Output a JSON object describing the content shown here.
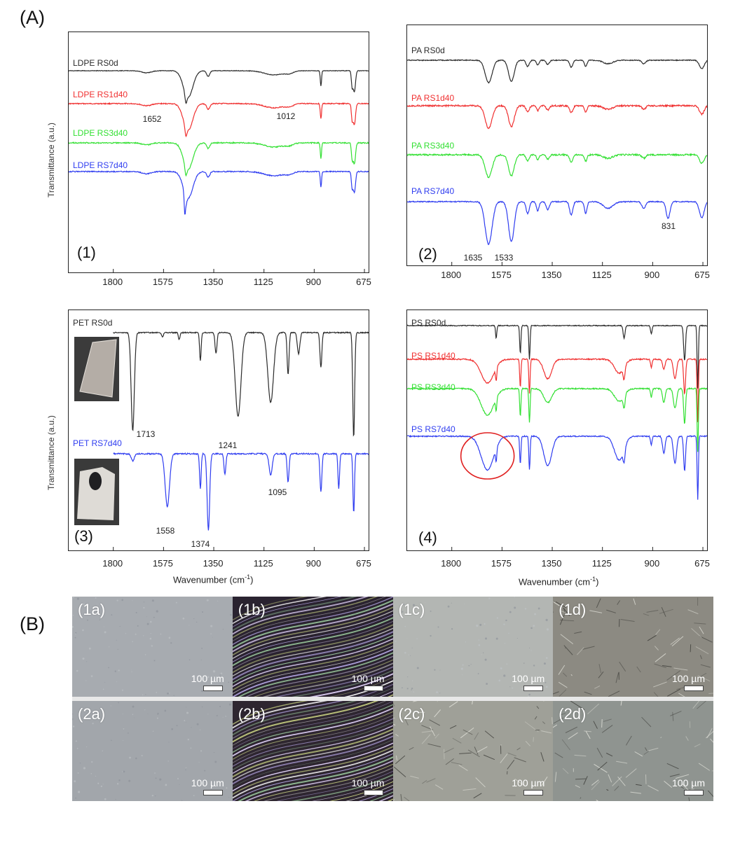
{
  "figure": {
    "section_a_label": "(A)",
    "section_b_label": "(B)"
  },
  "chart_data": [
    {
      "type": "line",
      "panel_tag": "(1)",
      "ylabel": "Transmittance (a.u.)",
      "xlabel": "",
      "xticks": [
        "1800",
        "1575",
        "1350",
        "1125",
        "900",
        "675"
      ],
      "xlim": [
        2000,
        650
      ],
      "series": [
        {
          "name": "LDPE RS0d",
          "color": "#2b2b2b"
        },
        {
          "name": "LDPE RS1d40",
          "color": "#f03030"
        },
        {
          "name": "LDPE RS3d40",
          "color": "#33e033"
        },
        {
          "name": "LDPE RS7d40",
          "color": "#2f3df0"
        }
      ],
      "peak_labels": [
        {
          "text": "1652",
          "x": 1652
        },
        {
          "text": "1012",
          "x": 1012
        }
      ]
    },
    {
      "type": "line",
      "panel_tag": "(2)",
      "ylabel": "",
      "xlabel": "",
      "xticks": [
        "1800",
        "1575",
        "1350",
        "1125",
        "900",
        "675"
      ],
      "xlim": [
        2000,
        650
      ],
      "series": [
        {
          "name": "PA RS0d",
          "color": "#2b2b2b"
        },
        {
          "name": "PA RS1d40",
          "color": "#f03030"
        },
        {
          "name": "PA RS3d40",
          "color": "#33e033"
        },
        {
          "name": "PA RS7d40",
          "color": "#2f3df0"
        }
      ],
      "peak_labels": [
        {
          "text": "1635",
          "x": 1635
        },
        {
          "text": "1533",
          "x": 1533
        },
        {
          "text": "831",
          "x": 831
        }
      ]
    },
    {
      "type": "line",
      "panel_tag": "(3)",
      "ylabel": "Transmittance (a.u.)",
      "xlabel": "Wavenumber (cm",
      "xlabel_sup": "-1",
      "xlabel_end": ")",
      "xticks": [
        "1800",
        "1575",
        "1350",
        "1125",
        "900",
        "675"
      ],
      "xlim": [
        2000,
        650
      ],
      "series": [
        {
          "name": "PET RS0d",
          "color": "#2b2b2b"
        },
        {
          "name": "PET RS7d40",
          "color": "#2f3df0"
        }
      ],
      "peak_labels": [
        {
          "text": "1713",
          "x": 1713
        },
        {
          "text": "1241",
          "x": 1241
        },
        {
          "text": "1558",
          "x": 1558
        },
        {
          "text": "1374",
          "x": 1374
        },
        {
          "text": "1095",
          "x": 1095
        }
      ]
    },
    {
      "type": "line",
      "panel_tag": "(4)",
      "ylabel": "",
      "xlabel": "Wavenumber (cm",
      "xlabel_sup": "-1",
      "xlabel_end": ")",
      "xticks": [
        "1800",
        "1575",
        "1350",
        "1125",
        "900",
        "675"
      ],
      "xlim": [
        2000,
        650
      ],
      "series": [
        {
          "name": "PS RS0d",
          "color": "#2b2b2b"
        },
        {
          "name": "PS RS1d40",
          "color": "#f03030"
        },
        {
          "name": "PS RS3d40",
          "color": "#33e033"
        },
        {
          "name": "PS RS7d40",
          "color": "#2f3df0"
        }
      ],
      "peak_labels": [],
      "highlight": {
        "color": "#e02020"
      }
    }
  ],
  "micrographs": [
    {
      "label": "(1a)",
      "scale": "100 µm",
      "bg": "#a7abb0"
    },
    {
      "label": "(1b)",
      "scale": "100 µm",
      "bg": "#2a2330"
    },
    {
      "label": "(1c)",
      "scale": "100 µm",
      "bg": "#b3b6b3"
    },
    {
      "label": "(1d)",
      "scale": "100 µm",
      "bg": "#8c8a82"
    },
    {
      "label": "(2a)",
      "scale": "100 µm",
      "bg": "#a2a6ab"
    },
    {
      "label": "(2b)",
      "scale": "100 µm",
      "bg": "#2e2630"
    },
    {
      "label": "(2c)",
      "scale": "100 µm",
      "bg": "#9fa098"
    },
    {
      "label": "(2d)",
      "scale": "100 µm",
      "bg": "#8f9490"
    }
  ]
}
